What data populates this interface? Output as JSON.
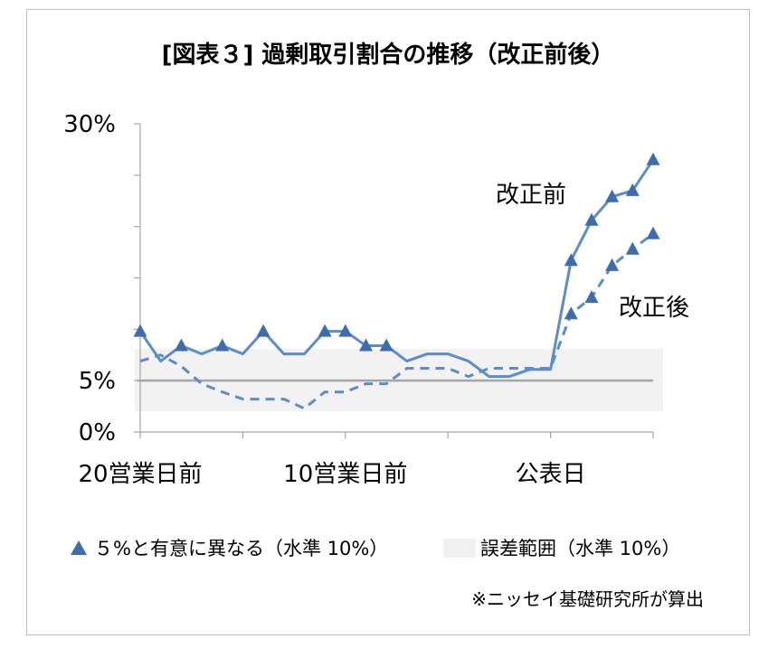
{
  "chart_data": {
    "type": "line",
    "title": "[図表３] 過剰取引割合の推移（改正前後）",
    "xlabel": "",
    "ylabel": "",
    "x": [
      -20,
      -19,
      -18,
      -17,
      -16,
      -15,
      -14,
      -13,
      -12,
      -11,
      -10,
      -9,
      -8,
      -7,
      -6,
      -5,
      -4,
      -3,
      -2,
      -1,
      0,
      1,
      2,
      3,
      4,
      5
    ],
    "xlim": [
      -20,
      5
    ],
    "x_tick_step": 5,
    "xticks": [
      {
        "value": -20,
        "label": "20営業日前"
      },
      {
        "value": -10,
        "label": "10営業日前"
      },
      {
        "value": 0,
        "label": "公表日"
      }
    ],
    "ylim": [
      0,
      30
    ],
    "y_tick_step": 5,
    "yticks": [
      {
        "value": 0,
        "label": "0%"
      },
      {
        "value": 5,
        "label": "5%"
      },
      {
        "value": 30,
        "label": "30%"
      }
    ],
    "series": [
      {
        "name": "改正前",
        "style": "solid",
        "color": "#5b8ccc",
        "marker_color": "#3d6cb0",
        "values": [
          9.8,
          6.9,
          8.4,
          7.6,
          8.4,
          7.6,
          9.8,
          7.6,
          7.6,
          9.8,
          9.8,
          8.4,
          8.4,
          6.9,
          7.6,
          7.6,
          6.9,
          5.4,
          5.4,
          6.1,
          6.1,
          16.7,
          20.6,
          22.9,
          23.5,
          26.5
        ],
        "significant_x": [
          -20,
          -18,
          -16,
          -14,
          -11,
          -10,
          -9,
          -8,
          1,
          2,
          3,
          4,
          5
        ]
      },
      {
        "name": "改正後",
        "style": "dashed",
        "color": "#5b8ccc",
        "marker_color": "#3d6cb0",
        "values": [
          6.9,
          7.5,
          6.4,
          4.7,
          3.9,
          3.2,
          3.2,
          3.2,
          2.3,
          3.9,
          3.9,
          4.7,
          4.7,
          6.2,
          6.2,
          6.2,
          5.4,
          6.2,
          6.2,
          6.2,
          6.2,
          11.5,
          13.1,
          16.2,
          17.8,
          19.3
        ],
        "significant_x": [
          1,
          2,
          3,
          4,
          5
        ]
      }
    ],
    "reference_line": {
      "value": 5,
      "color": "#a6a6a6"
    },
    "band": {
      "low": 2.0,
      "high": 8.1,
      "color": "#f2f2f2"
    },
    "axis_color": "#a6a6a6",
    "grid": false,
    "legend_position": "bottom",
    "legend": [
      {
        "label": "５%と有意に異なる（水準 10%）",
        "marker": "triangle"
      },
      {
        "label": "誤差範囲（水準 10%）",
        "marker": "gray-box"
      }
    ]
  },
  "footer": {
    "note": "※ニッセイ基礎研究所が算出"
  }
}
